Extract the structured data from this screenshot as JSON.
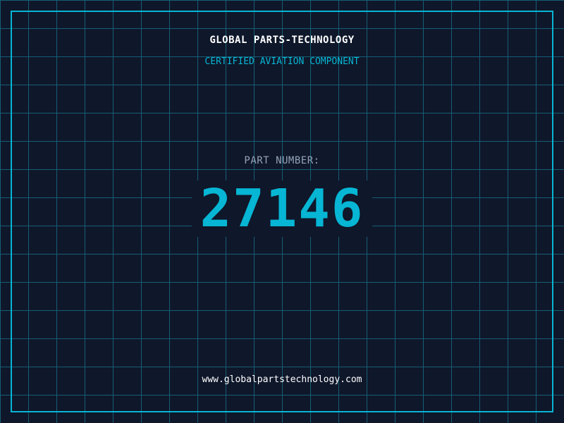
{
  "header": {
    "title": "GLOBAL PARTS-TECHNOLOGY",
    "subtitle": "CERTIFIED AVIATION COMPONENT"
  },
  "part": {
    "label": "PART NUMBER:",
    "number": "27146"
  },
  "footer": {
    "url": "www.globalpartstechnology.com"
  },
  "colors": {
    "background": "#0f172a",
    "grid": "#155e75",
    "accent": "#06b6d4",
    "label": "#94a3b8"
  }
}
